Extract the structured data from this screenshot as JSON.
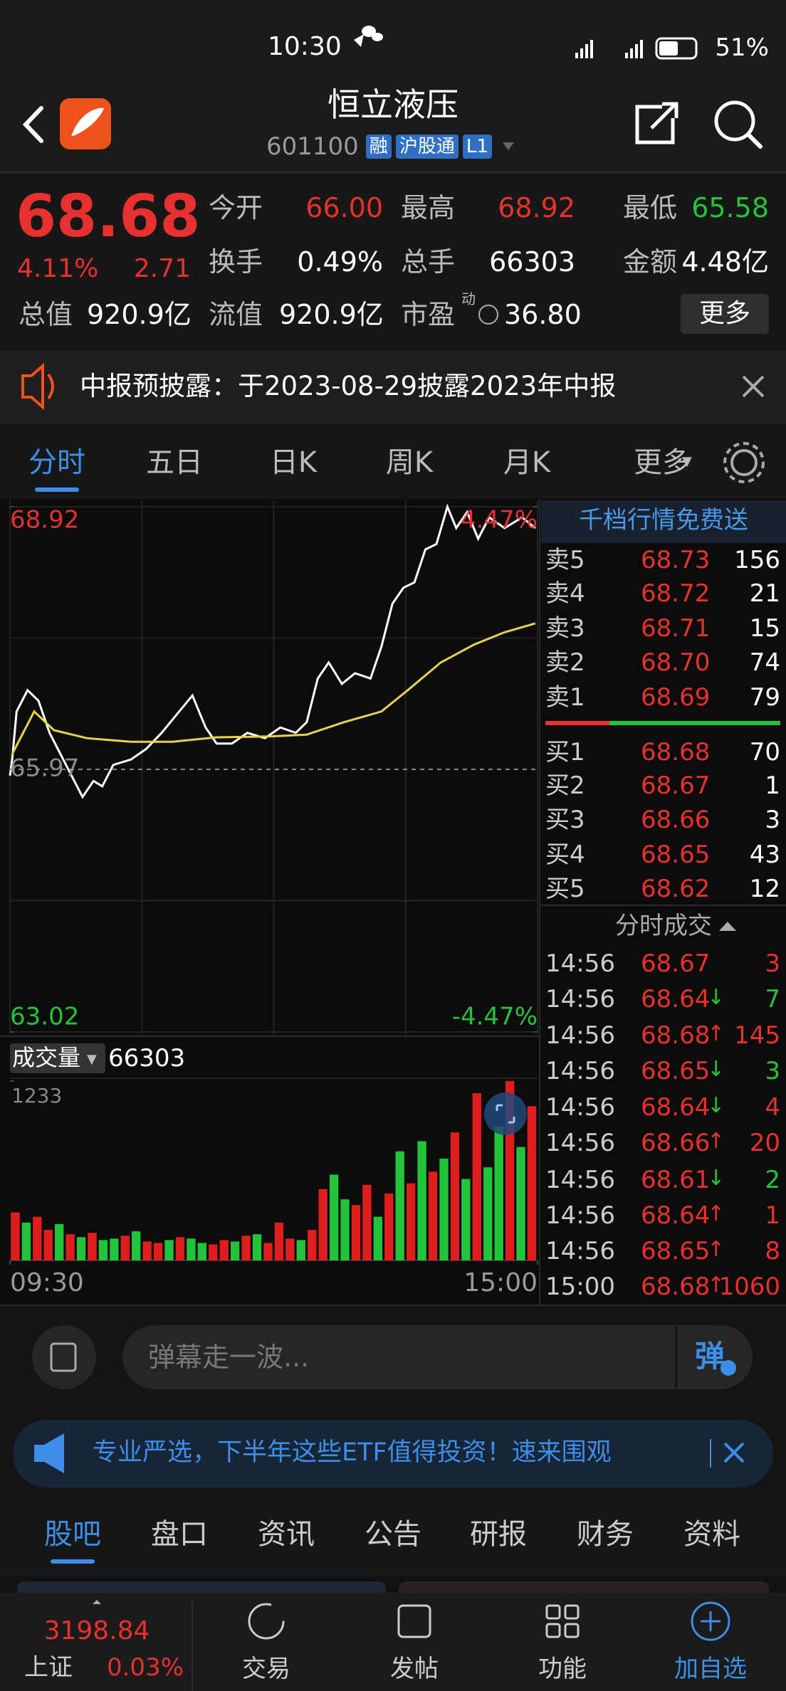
{
  "status": {
    "time": "10:30",
    "battery": "51%"
  },
  "header": {
    "title": "恒立液压",
    "code": "601100",
    "tags": [
      "融",
      "沪股通",
      "L1"
    ]
  },
  "quote": {
    "price": "68.68",
    "change_pct": "4.11%",
    "change": "2.71",
    "fields": [
      {
        "label": "今开",
        "value": "66.00",
        "color": "#e8312f"
      },
      {
        "label": "最高",
        "value": "68.92",
        "color": "#e8312f"
      },
      {
        "label": "最低",
        "value": "65.58",
        "color": "#22c43a"
      },
      {
        "label": "换手",
        "value": "0.49%",
        "color": "#ffffff"
      },
      {
        "label": "总手",
        "value": "66303",
        "color": "#ffffff"
      },
      {
        "label": "金额",
        "value": "4.48亿",
        "color": "#ffffff"
      }
    ],
    "market_cap": {
      "label": "总值",
      "value": "920.9亿"
    },
    "float_cap": {
      "label": "流值",
      "value": "920.9亿"
    },
    "pe": {
      "label": "市盈",
      "sup": "动",
      "value": "36.80"
    },
    "more": "更多"
  },
  "notice": {
    "text": "中报预披露：于2023-08-29披露2023年中报"
  },
  "tabs": [
    "分时",
    "五日",
    "日K",
    "周K",
    "月K",
    "更多"
  ],
  "chart_data": [
    {
      "type": "line",
      "xlim": [
        0,
        240
      ],
      "ylim": [
        63.02,
        68.92
      ],
      "yticks": [
        68.92,
        65.97,
        63.02
      ],
      "ytick_colors": [
        "#e8312f",
        "#8a8a8a",
        "#22c43a"
      ],
      "y2lim": [
        -4.47,
        4.47
      ],
      "y2ticks": [
        {
          "value": 4.47,
          "label": "4.47%"
        },
        {
          "value": -4.47,
          "label": "-4.47%"
        }
      ],
      "series": [
        {
          "color": "#ffffff",
          "x": [
            0,
            1,
            3,
            8,
            13,
            18,
            23,
            28,
            33,
            38,
            42,
            47,
            55,
            62,
            69,
            77,
            83,
            89,
            94,
            101,
            108,
            116,
            123,
            130,
            135,
            140,
            145,
            151,
            157,
            164,
            169,
            174,
            179,
            184,
            189,
            194,
            199,
            203,
            208,
            213,
            218,
            225,
            233,
            239
          ],
          "values": [
            65.9,
            66.08,
            66.62,
            66.86,
            66.74,
            66.38,
            66.14,
            65.9,
            65.66,
            65.84,
            65.78,
            66.02,
            66.08,
            66.2,
            66.38,
            66.62,
            66.8,
            66.44,
            66.26,
            66.26,
            66.38,
            66.32,
            66.44,
            66.38,
            66.5,
            66.99,
            67.17,
            66.93,
            67.05,
            66.99,
            67.35,
            67.83,
            68.01,
            68.07,
            68.44,
            68.5,
            68.92,
            68.68,
            68.86,
            68.56,
            68.8,
            68.68,
            68.8,
            68.68
          ]
        },
        {
          "color": "#e6d24a",
          "x": [
            1,
            11,
            20,
            35,
            55,
            74,
            94,
            118,
            135,
            152,
            169,
            181,
            196,
            211,
            225,
            239
          ],
          "values": [
            66.14,
            66.62,
            66.41,
            66.32,
            66.28,
            66.28,
            66.33,
            66.34,
            66.36,
            66.5,
            66.62,
            66.86,
            67.17,
            67.37,
            67.51,
            67.61
          ]
        }
      ]
    },
    {
      "type": "bar",
      "label": "成交量",
      "total": "66303",
      "xlim": [
        0,
        240
      ],
      "ylim": [
        0,
        1233
      ],
      "yticks": [
        1233
      ],
      "xticks": [
        {
          "value": 0,
          "label": "09:30"
        },
        {
          "value": 240,
          "label": "15:00"
        }
      ],
      "x": [
        0,
        5,
        10,
        15,
        20,
        25,
        30,
        35,
        40,
        45,
        50,
        55,
        60,
        65,
        70,
        75,
        80,
        85,
        90,
        95,
        100,
        105,
        110,
        115,
        120,
        125,
        130,
        135,
        140,
        145,
        150,
        155,
        160,
        165,
        170,
        175,
        180,
        185,
        190,
        195,
        200,
        205,
        210,
        215,
        220,
        225,
        230,
        235
      ],
      "values": [
        330,
        260,
        300,
        210,
        250,
        180,
        160,
        190,
        140,
        150,
        170,
        200,
        130,
        120,
        140,
        160,
        150,
        120,
        110,
        140,
        130,
        170,
        180,
        120,
        260,
        150,
        140,
        210,
        490,
        590,
        420,
        380,
        520,
        300,
        460,
        750,
        530,
        820,
        610,
        700,
        880,
        560,
        1150,
        640,
        920,
        1233,
        780,
        1060
      ],
      "colors": [
        "#e01e1e",
        "#22c43a",
        "#e01e1e",
        "#e01e1e",
        "#22c43a",
        "#e01e1e",
        "#22c43a",
        "#e01e1e",
        "#22c43a",
        "#22c43a",
        "#e01e1e",
        "#22c43a",
        "#e01e1e",
        "#e01e1e",
        "#22c43a",
        "#e01e1e",
        "#22c43a",
        "#22c43a",
        "#e01e1e",
        "#e01e1e",
        "#22c43a",
        "#e01e1e",
        "#22c43a",
        "#e01e1e",
        "#e01e1e",
        "#e01e1e",
        "#22c43a",
        "#e01e1e",
        "#e01e1e",
        "#22c43a",
        "#22c43a",
        "#e01e1e",
        "#e01e1e",
        "#22c43a",
        "#e01e1e",
        "#22c43a",
        "#e01e1e",
        "#22c43a",
        "#e01e1e",
        "#22c43a",
        "#e01e1e",
        "#22c43a",
        "#e01e1e",
        "#22c43a",
        "#22c43a",
        "#e01e1e",
        "#22c43a",
        "#e01e1e"
      ]
    }
  ],
  "order_book": {
    "promo": "千档行情免费送",
    "asks": [
      {
        "label": "卖5",
        "price": "68.73",
        "volume": "156"
      },
      {
        "label": "卖4",
        "price": "68.72",
        "volume": "21"
      },
      {
        "label": "卖3",
        "price": "68.71",
        "volume": "15"
      },
      {
        "label": "卖2",
        "price": "68.70",
        "volume": "74"
      },
      {
        "label": "卖1",
        "price": "68.69",
        "volume": "79"
      }
    ],
    "bids": [
      {
        "label": "买1",
        "price": "68.68",
        "volume": "70"
      },
      {
        "label": "买2",
        "price": "68.67",
        "volume": "1"
      },
      {
        "label": "买3",
        "price": "68.66",
        "volume": "3"
      },
      {
        "label": "买4",
        "price": "68.65",
        "volume": "43"
      },
      {
        "label": "买5",
        "price": "68.62",
        "volume": "12"
      }
    ]
  },
  "trades": {
    "title": "分时成交",
    "rows": [
      {
        "time": "14:56",
        "price": "68.67",
        "volume": "3",
        "color": "#e8312f"
      },
      {
        "time": "14:56",
        "price": "68.64",
        "arrow": "↓",
        "volume": "7",
        "color": "#22c43a"
      },
      {
        "time": "14:56",
        "price": "68.68",
        "arrow": "↑",
        "volume": "145",
        "color": "#e8312f"
      },
      {
        "time": "14:56",
        "price": "68.65",
        "arrow": "↓",
        "volume": "3",
        "color": "#22c43a"
      },
      {
        "time": "14:56",
        "price": "68.64",
        "arrow": "↓",
        "volume": "4",
        "color": "#e8312f"
      },
      {
        "time": "14:56",
        "price": "68.66",
        "arrow": "↑",
        "volume": "20",
        "color": "#e8312f"
      },
      {
        "time": "14:56",
        "price": "68.61",
        "arrow": "↓",
        "volume": "2",
        "color": "#22c43a"
      },
      {
        "time": "14:56",
        "price": "68.64",
        "arrow": "↑",
        "volume": "1",
        "color": "#e8312f"
      },
      {
        "time": "14:56",
        "price": "68.65",
        "arrow": "↑",
        "volume": "8",
        "color": "#e8312f"
      },
      {
        "time": "15:00",
        "price": "68.68",
        "arrow": "↑",
        "volume": "1060",
        "color": "#e8312f"
      }
    ]
  },
  "danmaku": {
    "placeholder": "弹幕走一波...",
    "button": "弹"
  },
  "banner": {
    "text": "专业严选，下半年这些ETF值得投资！速来围观"
  },
  "section_tabs": [
    "股吧",
    "盘口",
    "资讯",
    "公告",
    "研报",
    "财务",
    "资料"
  ],
  "bottom_nav": {
    "index": {
      "value": "3198.84",
      "name": "上证",
      "change": "0.03%"
    },
    "items": [
      "交易",
      "发帖",
      "功能",
      "加自选"
    ]
  }
}
